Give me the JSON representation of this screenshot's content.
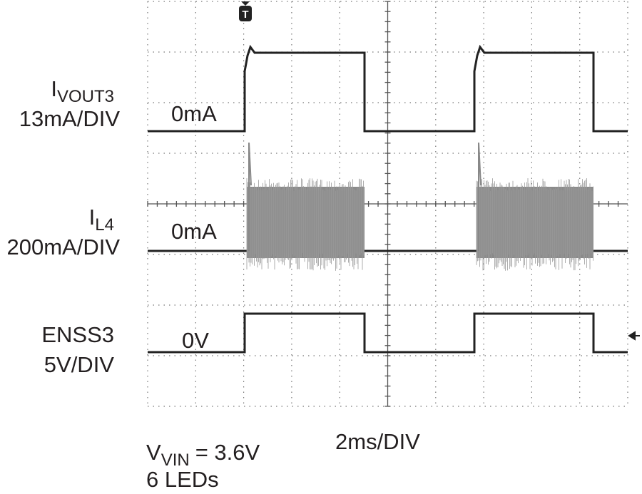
{
  "trigger": "T",
  "traces": [
    {
      "label": "I",
      "label_sub": "VOUT3",
      "scale": "13mA/DIV",
      "zero": "0mA"
    },
    {
      "label": "I",
      "label_sub": "L4",
      "scale": "200mA/DIV",
      "zero": "0mA"
    },
    {
      "label": "ENSS3",
      "scale": "5V/DIV",
      "zero": "0V"
    }
  ],
  "footer": {
    "condition": "V",
    "condition_sub": "VIN",
    "condition_value": "= 3.6V",
    "leds": "6 LEDs",
    "timebase": "2ms/DIV"
  }
}
